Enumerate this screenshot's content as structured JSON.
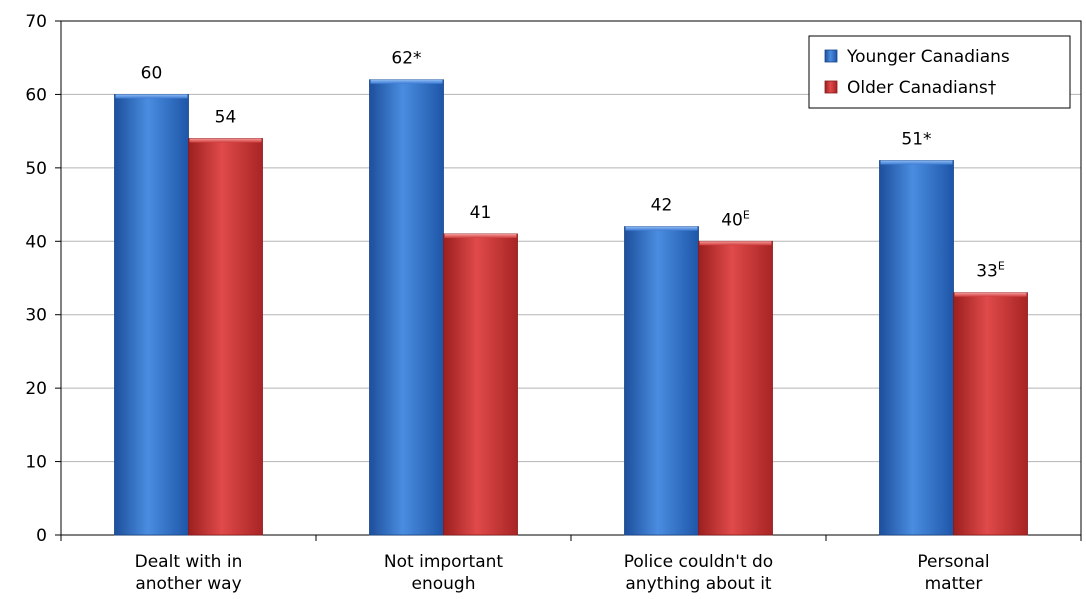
{
  "chart_data": {
    "type": "bar",
    "categories": [
      [
        "Dealt with in",
        "another way"
      ],
      [
        "Not important",
        "enough"
      ],
      [
        "Police couldn't do",
        "anything about it"
      ],
      [
        "Personal",
        "matter"
      ]
    ],
    "series": [
      {
        "name": "Younger Canadians",
        "color": "#2f6fc9",
        "values": [
          60,
          62,
          42,
          51
        ],
        "labels": [
          {
            "text": "60",
            "sup": ""
          },
          {
            "text": "62*",
            "sup": ""
          },
          {
            "text": "42",
            "sup": ""
          },
          {
            "text": "51*",
            "sup": ""
          }
        ]
      },
      {
        "name": "Older Canadians†",
        "color": "#c83232",
        "values": [
          54,
          41,
          40,
          33
        ],
        "labels": [
          {
            "text": "54",
            "sup": ""
          },
          {
            "text": "41",
            "sup": ""
          },
          {
            "text": "40",
            "sup": "E"
          },
          {
            "text": "33",
            "sup": "E"
          }
        ]
      }
    ],
    "ylim": [
      0,
      70
    ],
    "yticks": [
      0,
      10,
      20,
      30,
      40,
      50,
      60,
      70
    ],
    "grid": true,
    "legend_position": "top-right"
  }
}
